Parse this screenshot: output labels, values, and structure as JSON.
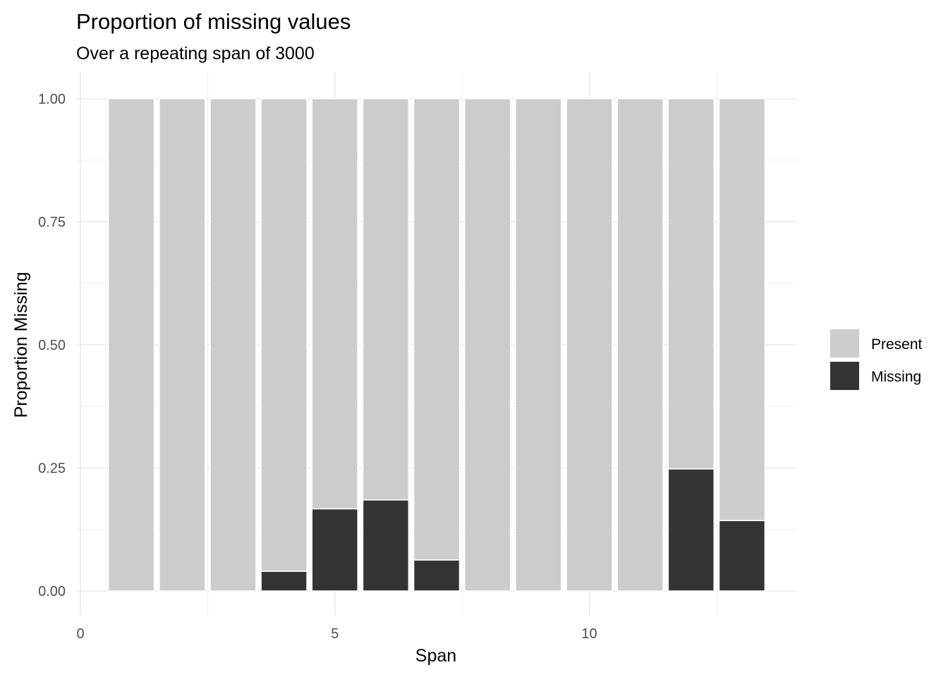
{
  "chart_data": {
    "type": "bar",
    "stacked": true,
    "title": "Proportion of missing values",
    "subtitle": "Over a repeating span of 3000",
    "xlabel": "Span",
    "ylabel": "Proportion Missing",
    "x": [
      1,
      2,
      3,
      4,
      5,
      6,
      7,
      8,
      9,
      10,
      11,
      12,
      13
    ],
    "xlim": [
      0,
      14.2
    ],
    "ylim": [
      0,
      1
    ],
    "x_ticks": [
      0,
      5,
      10
    ],
    "x_tick_labels": [
      "0",
      "5",
      "10"
    ],
    "y_ticks": [
      0,
      0.25,
      0.5,
      0.75,
      1
    ],
    "y_tick_labels": [
      "0.00",
      "0.25",
      "0.50",
      "0.75",
      "1.00"
    ],
    "grid": true,
    "legend_position": "right",
    "series": [
      {
        "name": "Present",
        "color": "#cccccc",
        "values": [
          1.0,
          1.0,
          1.0,
          0.96,
          0.833,
          0.815,
          0.937,
          1.0,
          1.0,
          1.0,
          1.0,
          0.752,
          0.857
        ]
      },
      {
        "name": "Missing",
        "color": "#333333",
        "values": [
          0.0,
          0.0,
          0.0,
          0.04,
          0.167,
          0.185,
          0.063,
          0.0,
          0.0,
          0.0,
          0.0,
          0.248,
          0.143
        ]
      }
    ]
  }
}
